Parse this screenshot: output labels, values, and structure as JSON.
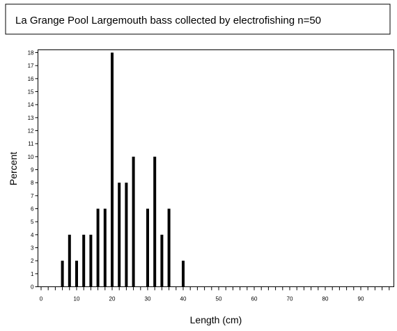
{
  "chart_data": {
    "type": "bar",
    "title": "La Grange Pool Largemouth bass collected by electrofishing n=50",
    "xlabel": "Length (cm)",
    "ylabel": "Percent",
    "x": [
      6,
      8,
      10,
      12,
      14,
      16,
      18,
      20,
      22,
      24,
      26,
      30,
      32,
      34,
      36,
      40
    ],
    "values": [
      2,
      4,
      2,
      4,
      4,
      6,
      6,
      18,
      8,
      8,
      10,
      6,
      10,
      4,
      6,
      2
    ],
    "xlim": [
      0,
      98
    ],
    "ylim": [
      0,
      18
    ],
    "x_ticks": [
      "0",
      "10",
      "20",
      "30",
      "40",
      "50",
      "60",
      "70",
      "80",
      "90"
    ],
    "y_ticks": [
      "0",
      "1",
      "2",
      "3",
      "4",
      "5",
      "6",
      "7",
      "8",
      "9",
      "10",
      "11",
      "12",
      "13",
      "14",
      "15",
      "16",
      "17",
      "18"
    ],
    "grid": false,
    "legend": "none",
    "bar_color": "#000000"
  }
}
